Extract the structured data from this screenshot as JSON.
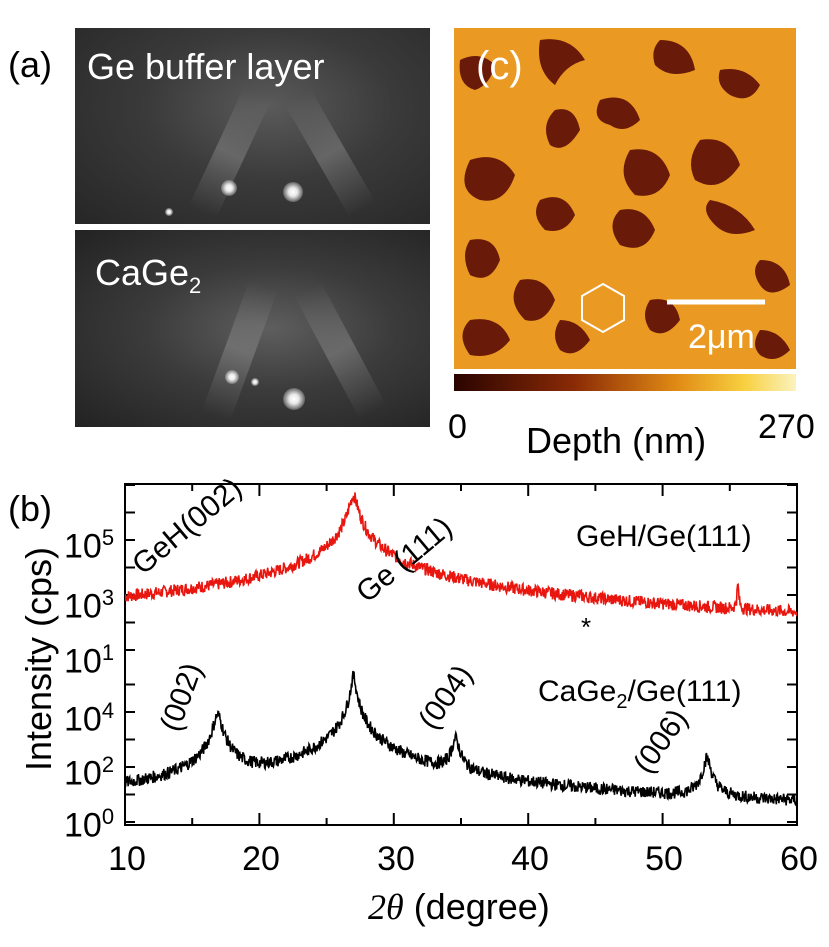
{
  "panel_a": {
    "label": "(a)",
    "top_caption": "Ge buffer layer",
    "bottom_caption_main": "CaGe",
    "bottom_caption_sub": "2"
  },
  "panel_c": {
    "label": "(c)",
    "scale_bar": "2μm",
    "colorbar_min": "0",
    "colorbar_max": "270",
    "colorbar_label": "Depth (nm)",
    "colors": {
      "dark": "#5a1208",
      "mid": "#c86a14",
      "light": "#f2b030",
      "bright": "#f8e060"
    }
  },
  "panel_b": {
    "label": "(b)",
    "xlabel_symbol": "2θ",
    "xlabel_text": " (degree)",
    "ylabel": "Intensity (cps)"
  },
  "chart_data": {
    "type": "line",
    "xlim": [
      10,
      60
    ],
    "xticks": [
      "10",
      "20",
      "30",
      "40",
      "50",
      "60"
    ],
    "yticks_top": [
      {
        "base": "10",
        "exp": "5"
      },
      {
        "base": "10",
        "exp": "3"
      },
      {
        "base": "10",
        "exp": "1"
      }
    ],
    "yticks_bottom": [
      {
        "base": "10",
        "exp": "4"
      },
      {
        "base": "10",
        "exp": "2"
      },
      {
        "base": "10",
        "exp": "0"
      }
    ],
    "series": [
      {
        "name": "GeH/Ge(111)",
        "color": "#e8160f",
        "baseline_log": 1.2,
        "peaks": [
          {
            "x": 14.5,
            "log": 1.8,
            "width": 2.2,
            "label": "GeH(002)"
          },
          {
            "x": 27.0,
            "log": 6.6,
            "width": 0.25,
            "label": "Ge (111)"
          },
          {
            "x": 43.8,
            "log": 1.8,
            "width": 0.3,
            "label": "*"
          },
          {
            "x": 55.6,
            "log": 3.3,
            "width": 0.05,
            "label": ""
          }
        ]
      },
      {
        "name_main": "CaGe",
        "name_sub": "2",
        "name_tail": "/Ge(111)",
        "color": "#000000",
        "baseline_log": 0.2,
        "peaks": [
          {
            "x": 16.9,
            "log": 3.9,
            "width": 0.25,
            "label": "(002)"
          },
          {
            "x": 27.0,
            "log": 5.3,
            "width": 0.15,
            "label": ""
          },
          {
            "x": 34.6,
            "log": 3.0,
            "width": 0.22,
            "label": "(004)"
          },
          {
            "x": 53.3,
            "log": 2.3,
            "width": 0.22,
            "label": "(006)"
          }
        ]
      }
    ]
  }
}
